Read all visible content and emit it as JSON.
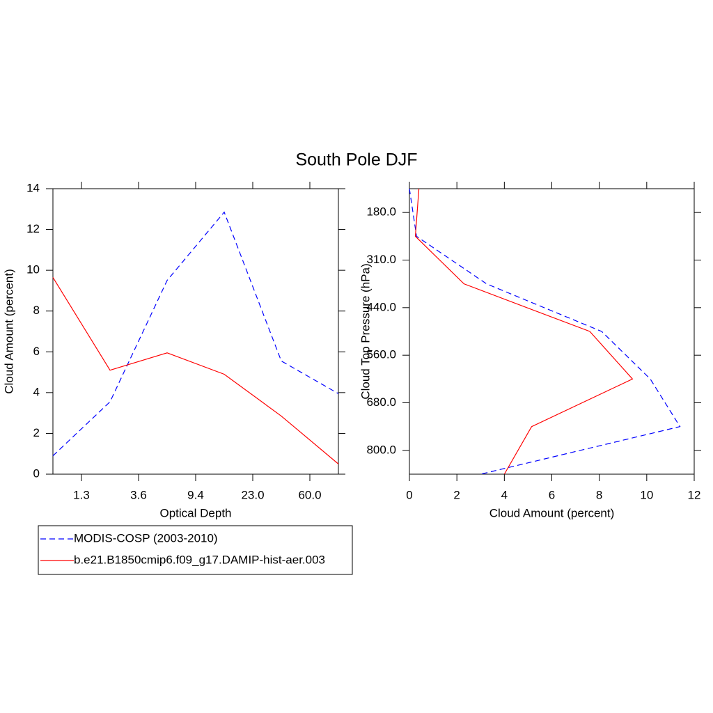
{
  "title": "South Pole DJF",
  "chart_data": [
    {
      "type": "line",
      "orientation": "vertical",
      "x_label": "Optical Depth",
      "y_label": "Cloud Amount (percent)",
      "x": [
        0,
        1,
        2,
        3,
        4,
        5
      ],
      "xlim": [
        0,
        5
      ],
      "xticks": [
        {
          "value": 0.5,
          "label": "1.3"
        },
        {
          "value": 1.5,
          "label": "3.6"
        },
        {
          "value": 2.5,
          "label": "9.4"
        },
        {
          "value": 3.5,
          "label": "23.0"
        },
        {
          "value": 4.5,
          "label": "60.0"
        }
      ],
      "ylim": [
        0,
        14
      ],
      "yticks": [
        0,
        2,
        4,
        6,
        8,
        10,
        12,
        14
      ],
      "series": [
        {
          "name": "MODIS-COSP (2003-2010)",
          "color": "#0000ff",
          "line_style": "dashed",
          "values": [
            0.9,
            3.55,
            9.5,
            12.85,
            5.55,
            3.95
          ]
        },
        {
          "name": "b.e21.B1850cmip6.f09_g17.DAMIP-hist-aer.003",
          "color": "#ff0000",
          "line_style": "solid",
          "values": [
            9.65,
            5.1,
            5.95,
            4.9,
            2.85,
            0.5
          ]
        }
      ]
    },
    {
      "type": "line",
      "orientation": "horizontal",
      "x_label": "Cloud Amount (percent)",
      "y_label": "Cloud Top Pressure (hPa)",
      "y": [
        0,
        1,
        2,
        3,
        4,
        5,
        6
      ],
      "ylim": [
        6,
        0
      ],
      "yticks": [
        {
          "value": 0.5,
          "label": "180.0"
        },
        {
          "value": 1.5,
          "label": "310.0"
        },
        {
          "value": 2.5,
          "label": "440.0"
        },
        {
          "value": 3.5,
          "label": "560.0"
        },
        {
          "value": 4.5,
          "label": "680.0"
        },
        {
          "value": 5.5,
          "label": "800.0"
        }
      ],
      "xlim": [
        0,
        12
      ],
      "xticks": [
        0,
        2,
        4,
        6,
        8,
        10,
        12
      ],
      "series": [
        {
          "color": "#0000ff",
          "line_style": "dashed",
          "values": [
            0,
            0.3,
            3.25,
            8.1,
            10.15,
            11.4,
            3.0
          ]
        },
        {
          "color": "#ff0000",
          "line_style": "solid",
          "values": [
            0.4,
            0.25,
            2.3,
            7.6,
            9.4,
            5.15,
            4.0
          ]
        }
      ]
    }
  ]
}
